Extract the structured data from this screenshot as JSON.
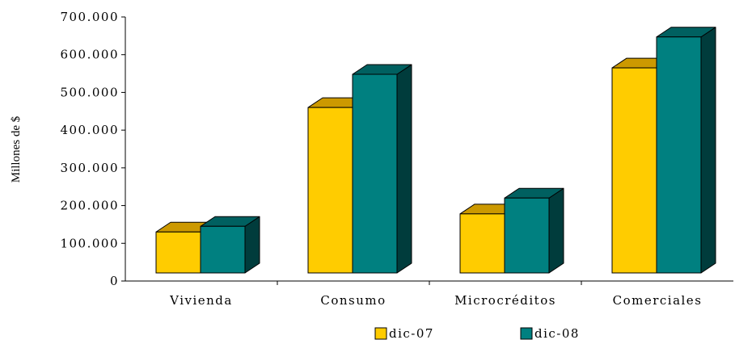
{
  "chart_data": {
    "type": "bar",
    "categories": [
      "Vivienda",
      "Consumo",
      "Microcréditos",
      "Comerciales"
    ],
    "series": [
      {
        "name": "dic-07",
        "values": [
          130000,
          460000,
          178000,
          565000
        ],
        "color": "#FFCC00",
        "top_color": "#CC9900",
        "side_color": "#997300"
      },
      {
        "name": "dic-08",
        "values": [
          145000,
          548000,
          220000,
          647000
        ],
        "color": "#008080",
        "top_color": "#006060",
        "side_color": "#003C3C"
      }
    ],
    "y_ticks": [
      "0",
      "100.000",
      "200.000",
      "300.000",
      "400.000",
      "500.000",
      "600.000",
      "700.000"
    ],
    "ylabel": "Millones de $",
    "xlabel": "",
    "ylim": [
      0,
      700000
    ],
    "legend_position": "bottom",
    "grid": false
  }
}
